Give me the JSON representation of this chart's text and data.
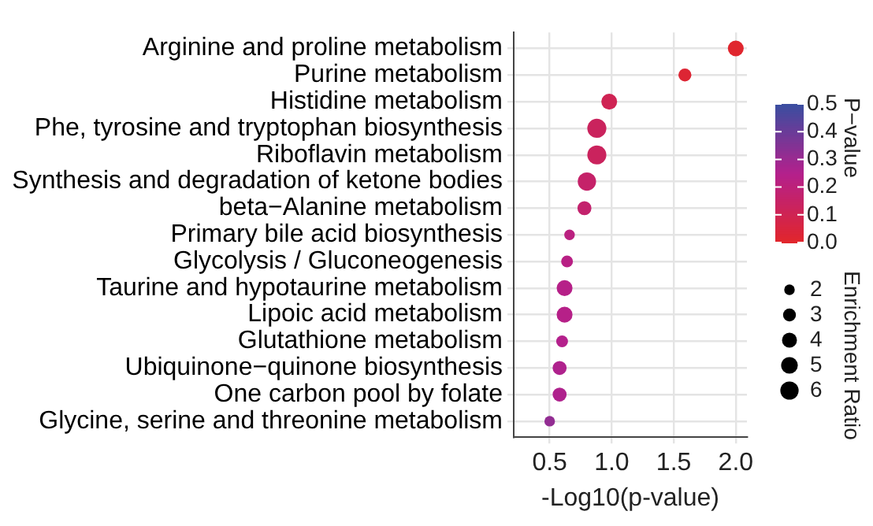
{
  "chart_data": {
    "type": "bubble",
    "orientation": "horizontal",
    "categories": [
      "Arginine and proline metabolism",
      "Purine metabolism",
      "Histidine metabolism",
      "Phe, tyrosine and tryptophan biosynthesis",
      "Riboflavin metabolism",
      "Synthesis and degradation of ketone bodies",
      "beta−Alanine metabolism",
      "Primary bile acid biosynthesis",
      "Glycolysis / Gluconeogenesis",
      "Taurine and hypotaurine metabolism",
      "Lipoic acid metabolism",
      "Glutathione metabolism",
      "Ubiquinone−quinone biosynthesis",
      "One carbon pool by folate",
      "Glycine, serine and threonine metabolism"
    ],
    "values": [
      2.0,
      1.59,
      0.98,
      0.88,
      0.88,
      0.8,
      0.78,
      0.66,
      0.64,
      0.62,
      0.62,
      0.6,
      0.58,
      0.58,
      0.5
    ],
    "sizes": [
      4.5,
      3,
      4.5,
      6.5,
      6.5,
      6,
      3.5,
      2,
      2.5,
      4.5,
      4.5,
      2.5,
      3.5,
      3.5,
      2
    ],
    "cvalues": [
      0.01,
      0.026,
      0.105,
      0.13,
      0.13,
      0.16,
      0.17,
      0.22,
      0.23,
      0.24,
      0.24,
      0.25,
      0.26,
      0.26,
      0.32
    ],
    "clim": [
      0,
      0.5
    ],
    "cticks": [
      {
        "value": 0,
        "label": "0.0"
      },
      0.1,
      0.2,
      0.3,
      0.4,
      0.5
    ],
    "clabel": "P−value",
    "size_legend": [
      2,
      3,
      4,
      5,
      6
    ],
    "legend_title": "Enrichment Ratio",
    "xlabel": "-Log10(p-value)",
    "xlim": [
      0.21,
      2.09
    ],
    "xticks": [
      0.5,
      {
        "value": 1,
        "label": "1.0"
      },
      1.5,
      {
        "value": 2,
        "label": "2.0"
      }
    ],
    "grid": true
  }
}
